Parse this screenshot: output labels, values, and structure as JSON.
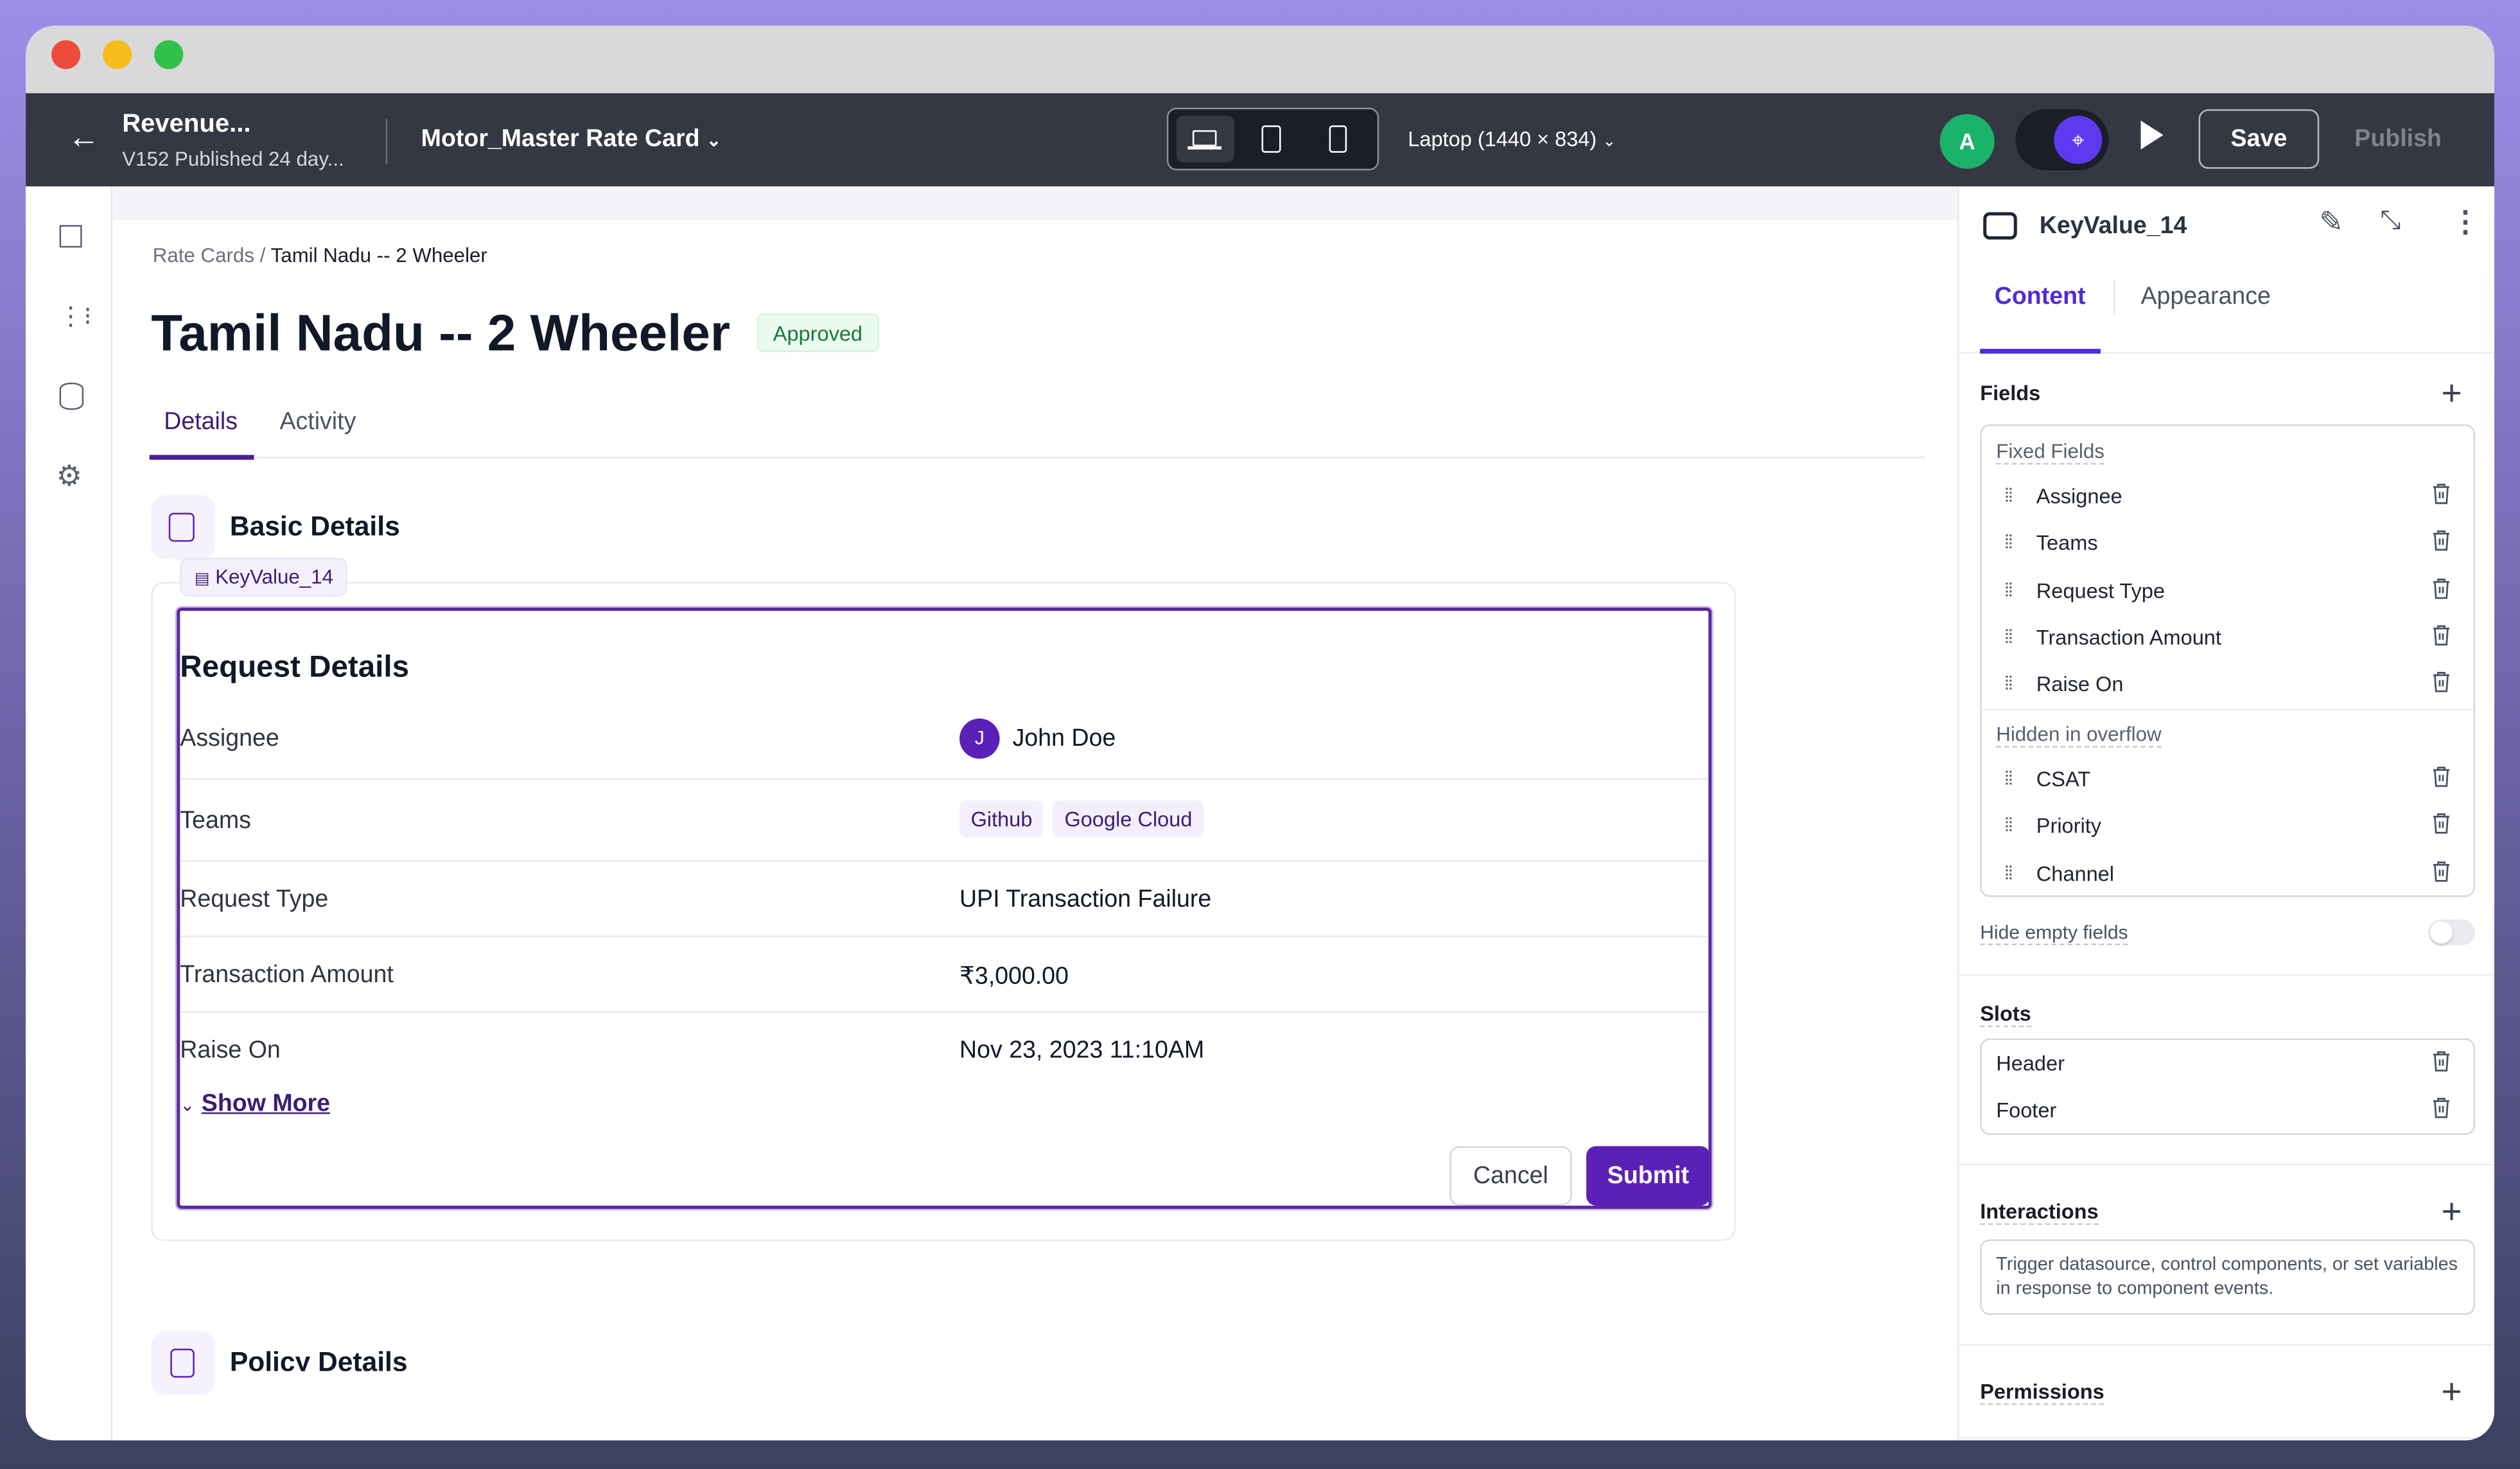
{
  "topbar": {
    "app_name": "Revenue...",
    "version": "V152 Published 24 day...",
    "page_selector": "Motor_Master Rate Card",
    "device_label": "Laptop (1440 × 834)",
    "avatar_initial": "A",
    "save_label": "Save",
    "publish_label": "Publish"
  },
  "breadcrumb": {
    "parent": "Rate Cards",
    "separator": "/",
    "current": "Tamil Nadu -- 2 Wheeler"
  },
  "page": {
    "title": "Tamil Nadu -- 2 Wheeler",
    "status": "Approved",
    "tabs": [
      {
        "label": "Details"
      },
      {
        "label": "Activity"
      }
    ],
    "section_title": "Basic Details",
    "component_tag": "KeyValue_14",
    "next_section_title": "Policy Details"
  },
  "card": {
    "title": "Request Details",
    "rows": [
      {
        "key": "Assignee",
        "value": "John Doe",
        "avatar": "J"
      },
      {
        "key": "Teams",
        "chips": [
          "Github",
          "Google Cloud"
        ]
      },
      {
        "key": "Request Type",
        "value": "UPI Transaction Failure"
      },
      {
        "key": "Transaction Amount",
        "value": "₹3,000.00"
      },
      {
        "key": "Raise On",
        "value": "Nov 23, 2023 11:10AM"
      }
    ],
    "show_more": "Show More",
    "cancel": "Cancel",
    "submit": "Submit"
  },
  "panel": {
    "component_name": "KeyValue_14",
    "tabs": [
      {
        "label": "Content"
      },
      {
        "label": "Appearance"
      }
    ],
    "fields_label": "Fields",
    "fixed_label": "Fixed Fields",
    "fixed": [
      "Assignee",
      "Teams",
      "Request Type",
      "Transaction Amount",
      "Raise On"
    ],
    "overflow_label": "Hidden in overflow",
    "overflow": [
      "CSAT",
      "Priority",
      "Channel"
    ],
    "hide_empty_label": "Hide empty fields",
    "hide_empty_on": false,
    "slots_label": "Slots",
    "slots": [
      "Header",
      "Footer"
    ],
    "interactions_label": "Interactions",
    "interactions_desc": "Trigger datasource, control components, or set variables in response to component events.",
    "permissions_label": "Permissions"
  },
  "colors": {
    "accent": "#5b21b6",
    "brand_tab": "#4f2bd8",
    "approved_bg": "#ecfbf0",
    "approved_text": "#177a3a",
    "avatar_green": "#1bb26a"
  }
}
